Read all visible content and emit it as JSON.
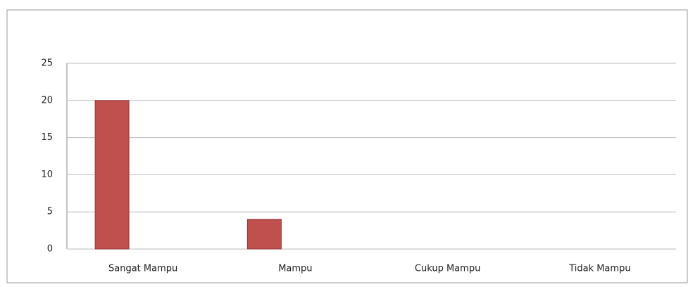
{
  "chart_data": {
    "type": "bar",
    "categories": [
      "Sangat Mampu",
      "Mampu",
      "Cukup Mampu",
      "Tidak Mampu"
    ],
    "values": [
      20,
      4,
      0,
      0
    ],
    "color": "#c0504d",
    "ylim": [
      0,
      25
    ],
    "yticks": [
      0,
      5,
      10,
      15,
      20,
      25
    ],
    "grid": true
  }
}
